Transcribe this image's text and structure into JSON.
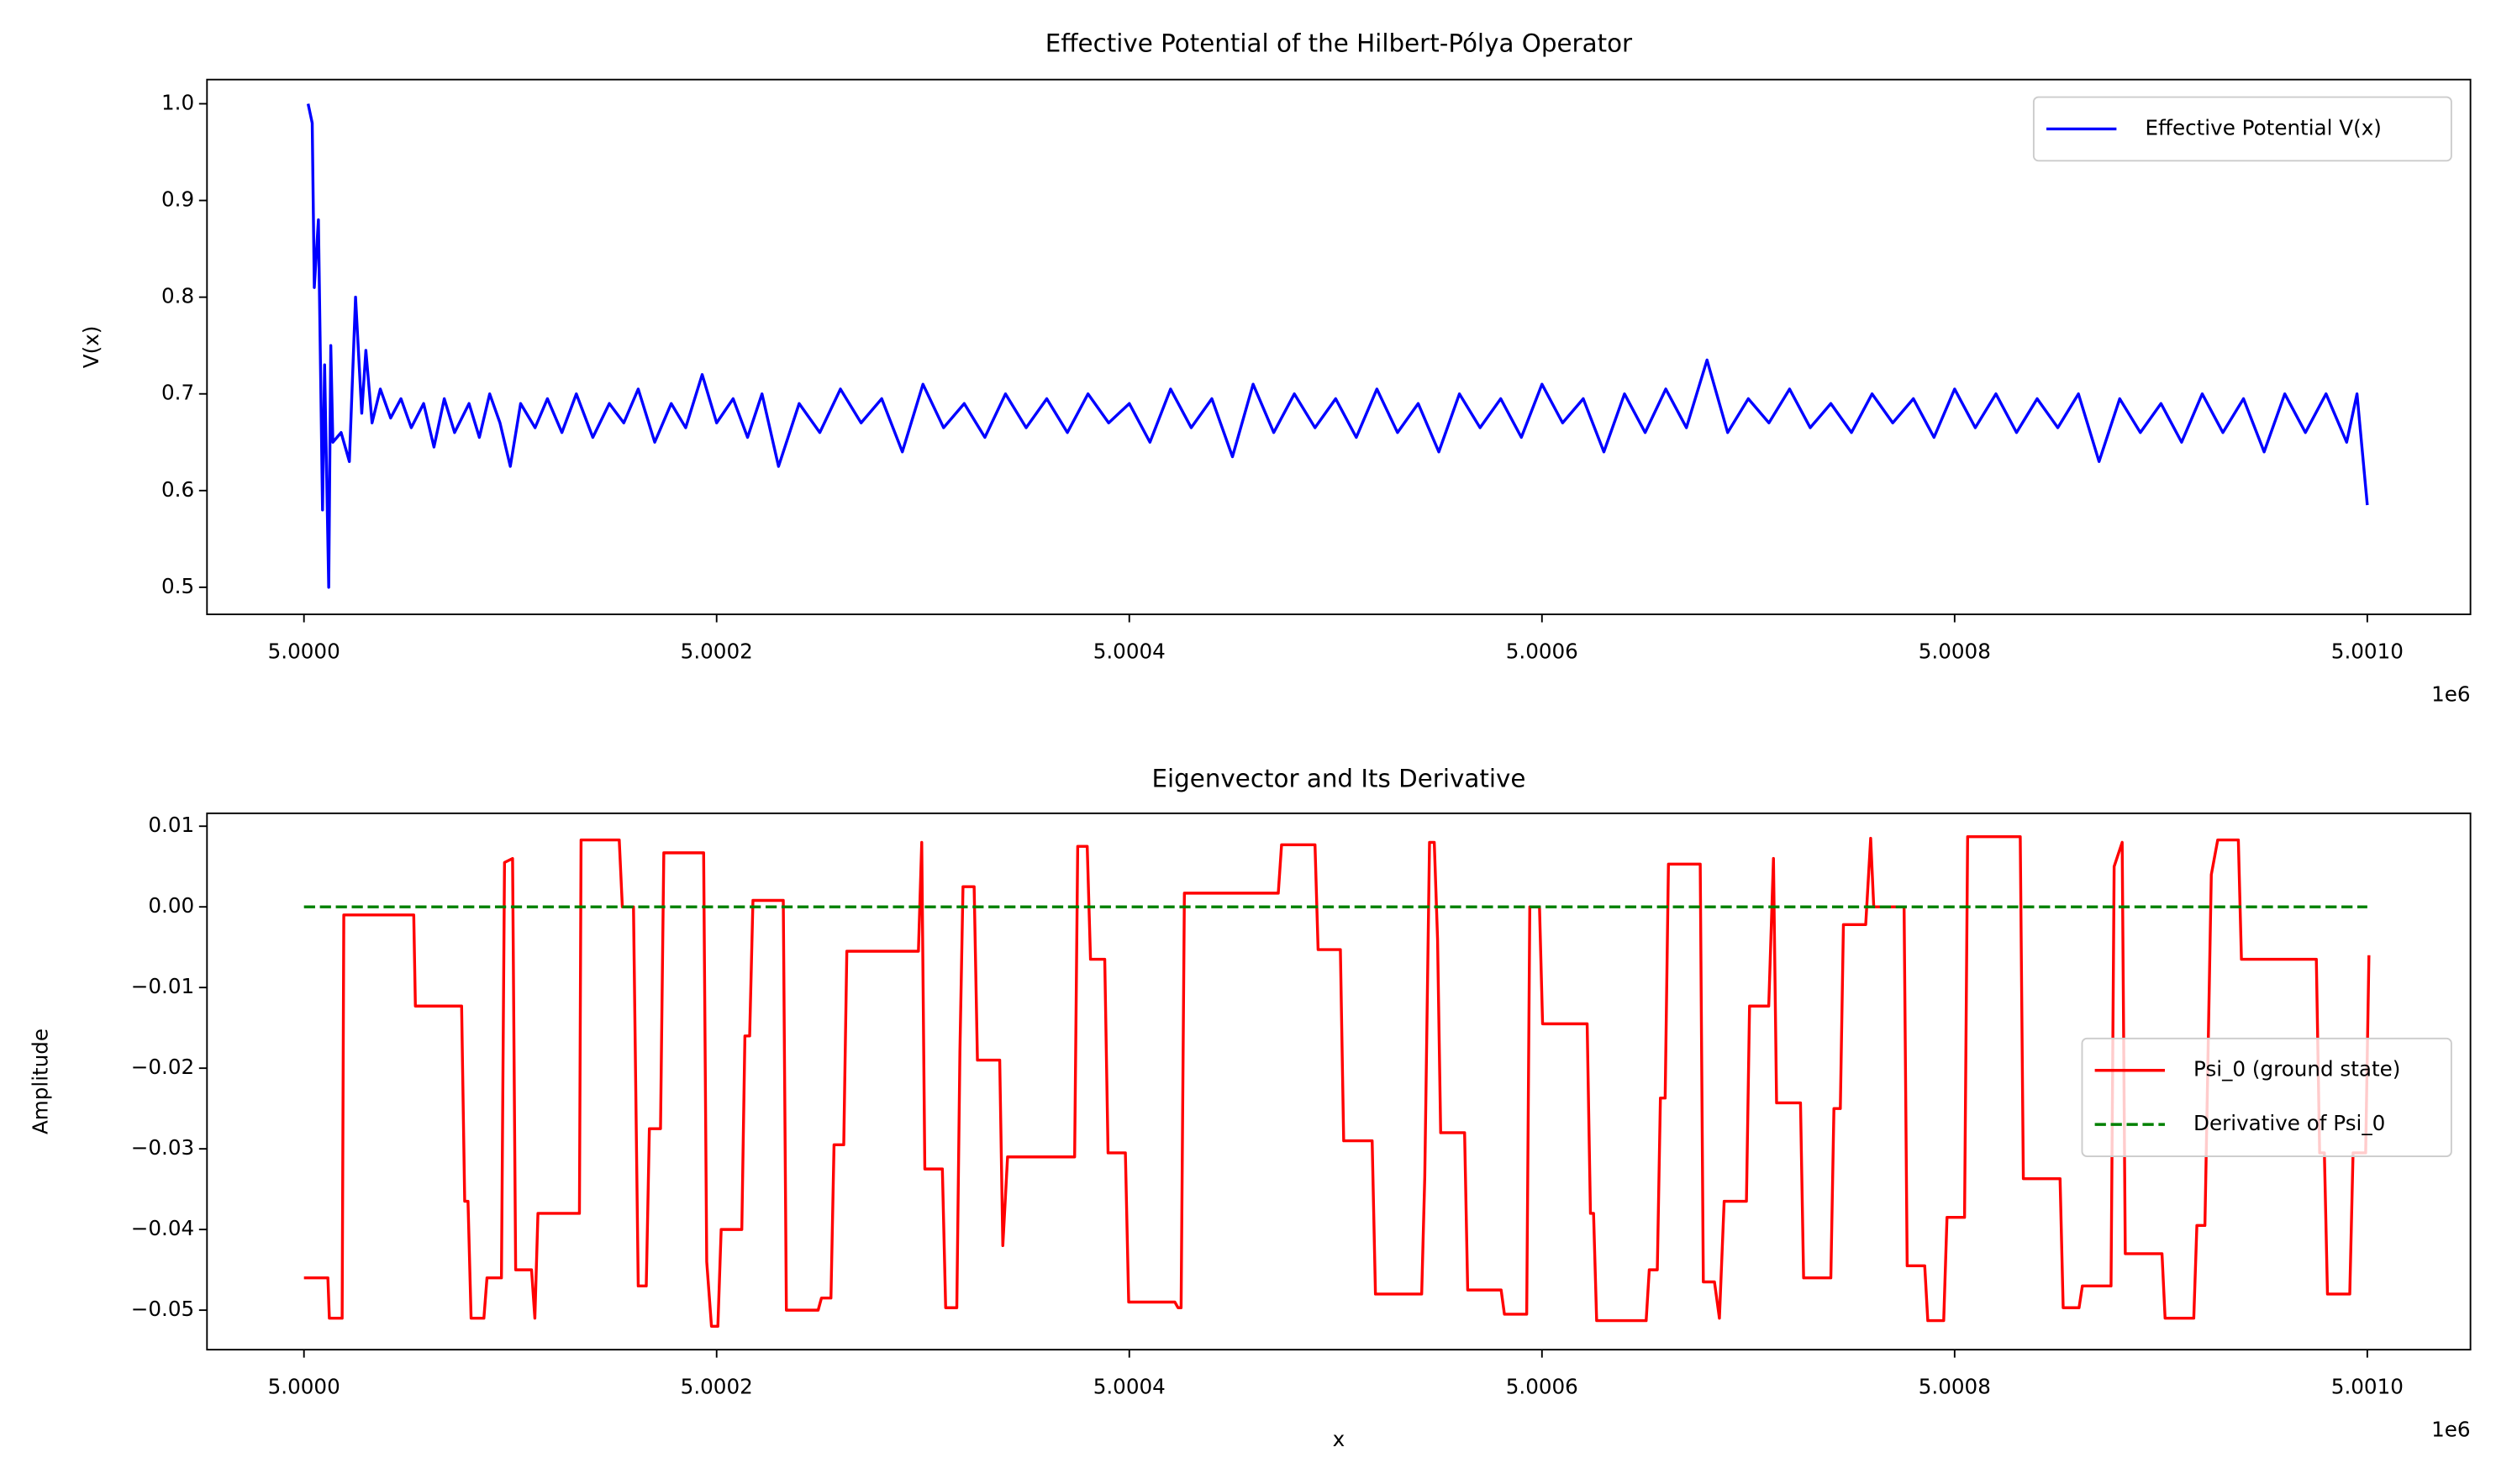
{
  "chart_data": [
    {
      "type": "line",
      "title": "Effective Potential of the Hilbert-Pólya Operator",
      "ylabel": "V(x)",
      "x_offset_label": "1e6",
      "xlim": [
        4.999953,
        5.00105
      ],
      "ylim": [
        0.472,
        1.025
      ],
      "xticks": [
        {
          "value": 5.0,
          "label": "5.0000"
        },
        {
          "value": 5.0002,
          "label": "5.0002"
        },
        {
          "value": 5.0004,
          "label": "5.0004"
        },
        {
          "value": 5.0006,
          "label": "5.0006"
        },
        {
          "value": 5.0008,
          "label": "5.0008"
        },
        {
          "value": 5.001,
          "label": "5.0010"
        }
      ],
      "yticks": [
        0.5,
        0.6,
        0.7,
        0.8,
        0.9,
        {
          "value": 1,
          "label": "1.0"
        }
      ],
      "legend": "upper right",
      "series": [
        {
          "name": "Effective Potential V(x)",
          "color": "#0000ff",
          "linestyle": "solid",
          "x": [
            5.000002,
            5.000004,
            5.000005,
            5.000007,
            5.000009,
            5.00001,
            5.000012,
            5.000013,
            5.000014,
            5.000018,
            5.000022,
            5.000025,
            5.000028,
            5.00003,
            5.000033,
            5.000037,
            5.000042,
            5.000047,
            5.000052,
            5.000058,
            5.000063,
            5.000068,
            5.000073,
            5.00008,
            5.000085,
            5.00009,
            5.000095,
            5.0001,
            5.000105,
            5.000112,
            5.000118,
            5.000125,
            5.000132,
            5.00014,
            5.000148,
            5.000155,
            5.000162,
            5.00017,
            5.000178,
            5.000185,
            5.000193,
            5.0002,
            5.000208,
            5.000215,
            5.000222,
            5.00023,
            5.00024,
            5.00025,
            5.00026,
            5.00027,
            5.00028,
            5.00029,
            5.0003,
            5.00031,
            5.00032,
            5.00033,
            5.00034,
            5.00035,
            5.00036,
            5.00037,
            5.00038,
            5.00039,
            5.0004,
            5.00041,
            5.00042,
            5.00043,
            5.00044,
            5.00045,
            5.00046,
            5.00047,
            5.00048,
            5.00049,
            5.0005,
            5.00051,
            5.00052,
            5.00053,
            5.00054,
            5.00055,
            5.00056,
            5.00057,
            5.00058,
            5.00059,
            5.0006,
            5.00061,
            5.00062,
            5.00063,
            5.00064,
            5.00065,
            5.00066,
            5.00067,
            5.00068,
            5.00069,
            5.0007,
            5.00071,
            5.00072,
            5.00073,
            5.00074,
            5.00075,
            5.00076,
            5.00077,
            5.00078,
            5.00079,
            5.0008,
            5.00081,
            5.00082,
            5.00083,
            5.00084,
            5.00085,
            5.00086,
            5.00087,
            5.00088,
            5.00089,
            5.0009,
            5.00091,
            5.00092,
            5.00093,
            5.00094,
            5.00095,
            5.00096,
            5.00097,
            5.00098,
            5.00099,
            5.000995,
            5.001
          ],
          "values": [
            1.0,
            0.98,
            0.81,
            0.88,
            0.58,
            0.73,
            0.5,
            0.75,
            0.65,
            0.66,
            0.63,
            0.8,
            0.68,
            0.745,
            0.67,
            0.705,
            0.675,
            0.695,
            0.665,
            0.69,
            0.645,
            0.695,
            0.66,
            0.69,
            0.655,
            0.7,
            0.67,
            0.625,
            0.69,
            0.665,
            0.695,
            0.66,
            0.7,
            0.655,
            0.69,
            0.67,
            0.705,
            0.65,
            0.69,
            0.665,
            0.72,
            0.67,
            0.695,
            0.655,
            0.7,
            0.625,
            0.69,
            0.66,
            0.705,
            0.67,
            0.695,
            0.64,
            0.71,
            0.665,
            0.69,
            0.655,
            0.7,
            0.665,
            0.695,
            0.66,
            0.7,
            0.67,
            0.69,
            0.65,
            0.705,
            0.665,
            0.695,
            0.635,
            0.71,
            0.66,
            0.7,
            0.665,
            0.695,
            0.655,
            0.705,
            0.66,
            0.69,
            0.64,
            0.7,
            0.665,
            0.695,
            0.655,
            0.71,
            0.67,
            0.695,
            0.64,
            0.7,
            0.66,
            0.705,
            0.665,
            0.735,
            0.66,
            0.695,
            0.67,
            0.705,
            0.665,
            0.69,
            0.66,
            0.7,
            0.67,
            0.695,
            0.655,
            0.705,
            0.665,
            0.7,
            0.66,
            0.695,
            0.665,
            0.7,
            0.63,
            0.695,
            0.66,
            0.69,
            0.65,
            0.7,
            0.66,
            0.695,
            0.64,
            0.7,
            0.66,
            0.7,
            0.65,
            0.7,
            0.585
          ]
        }
      ]
    },
    {
      "type": "line",
      "title": "Eigenvector and Its Derivative",
      "xlabel": "x",
      "ylabel": "Amplitude",
      "x_offset_label": "1e6",
      "xlim": [
        4.999953,
        5.00105
      ],
      "ylim": [
        -0.0549,
        0.0116
      ],
      "xticks": [
        {
          "value": 5.0,
          "label": "5.0000"
        },
        {
          "value": 5.0002,
          "label": "5.0002"
        },
        {
          "value": 5.0004,
          "label": "5.0004"
        },
        {
          "value": 5.0006,
          "label": "5.0006"
        },
        {
          "value": 5.0008,
          "label": "5.0008"
        },
        {
          "value": 5.001,
          "label": "5.0010"
        }
      ],
      "yticks": [
        {
          "value": -0.05,
          "label": "−0.05"
        },
        {
          "value": -0.04,
          "label": "−0.04"
        },
        {
          "value": -0.03,
          "label": "−0.03"
        },
        {
          "value": -0.02,
          "label": "−0.02"
        },
        {
          "value": -0.01,
          "label": "−0.01"
        },
        {
          "value": 0,
          "label": "0.00"
        },
        0.01
      ],
      "legend": "center right",
      "series": [
        {
          "name": "Psi_0 (ground state)",
          "color": "#ff0000",
          "linestyle": "solid",
          "x": [
            5.0,
            5.0000116,
            5.0000123,
            5.0000185,
            5.0000193,
            5.0000532,
            5.000054,
            5.0000764,
            5.0000779,
            5.0000795,
            5.000081,
            5.0000872,
            5.0000887,
            5.0000957,
            5.0000972,
            5.0001011,
            5.0001026,
            5.0001103,
            5.0001119,
            5.0001134,
            5.0001335,
            5.0001343,
            5.0001528,
            5.0001543,
            5.0001597,
            5.000162,
            5.0001659,
            5.0001674,
            5.0001728,
            5.0001744,
            5.0001937,
            5.0001952,
            5.0001975,
            5.0002006,
            5.0002022,
            5.0002122,
            5.0002137,
            5.000216,
            5.0002176,
            5.0002323,
            5.0002338,
            5.0002492,
            5.0002508,
            5.0002554,
            5.0002569,
            5.0002616,
            5.0002631,
            5.0002978,
            5.0002994,
            5.0003009,
            5.0003094,
            5.000311,
            5.0003164,
            5.0003179,
            5.0003194,
            5.0003248,
            5.0003264,
            5.0003372,
            5.0003387,
            5.000341,
            5.0003735,
            5.000375,
            5.0003796,
            5.0003812,
            5.0003881,
            5.0003897,
            5.0003981,
            5.0003997,
            5.0004221,
            5.0004236,
            5.0004251,
            5.0004267,
            5.0004722,
            5.0004738,
            5.00049,
            5.0004915,
            5.0005023,
            5.0005039,
            5.0005177,
            5.0005193,
            5.0005417,
            5.0005432,
            5.0005455,
            5.0005478,
            5.0005494,
            5.0005509,
            5.0005625,
            5.000564,
            5.0005802,
            5.0005818,
            5.0005926,
            5.0005941,
            5.0005988,
            5.0006003,
            5.0006219,
            5.0006235,
            5.000625,
            5.0006265,
            5.0006505,
            5.000652,
            5.0006559,
            5.0006574,
            5.0006597,
            5.0006613,
            5.0006767,
            5.0006782,
            5.0006836,
            5.000686,
            5.0006883,
            5.0006991,
            5.0007006,
            5.0007099,
            5.0007122,
            5.0007137,
            5.0007253,
            5.0007268,
            5.00074,
            5.0007415,
            5.0007446,
            5.0007461,
            5.0007569,
            5.0007593,
            5.0007608,
            5.0007755,
            5.000777,
            5.0007855,
            5.000787,
            5.0007947,
            5.0007963,
            5.0008048,
            5.0008063,
            5.0008318,
            5.0008333,
            5.0008511,
            5.0008526,
            5.0008603,
            5.0008619,
            5.0008758,
            5.0008773,
            5.0008812,
            5.0008827,
            5.0009005,
            5.000902,
            5.0009159,
            5.0009174,
            5.0009213,
            5.0009244,
            5.0009275,
            5.0009375,
            5.000939,
            5.0009753,
            5.0009769,
            5.0009792,
            5.0009807,
            5.0009915,
            5.0009931,
            5.0009992,
            5.0010008
          ],
          "values": [
            -0.046,
            -0.046,
            -0.051,
            -0.051,
            -0.001,
            -0.001,
            -0.0123,
            -0.0123,
            -0.0365,
            -0.0365,
            -0.051,
            -0.051,
            -0.046,
            -0.046,
            0.0055,
            0.006,
            -0.045,
            -0.045,
            -0.051,
            -0.038,
            -0.038,
            0.0083,
            0.0083,
            0,
            0,
            -0.047,
            -0.047,
            -0.0275,
            -0.0275,
            0.0067,
            0.0067,
            -0.044,
            -0.052,
            -0.052,
            -0.04,
            -0.04,
            -0.016,
            -0.016,
            0.0008,
            0.0008,
            -0.05,
            -0.05,
            -0.0485,
            -0.0485,
            -0.0295,
            -0.0295,
            -0.0055,
            -0.0055,
            0.008,
            -0.0325,
            -0.0325,
            -0.0497,
            -0.0497,
            -0.018,
            0.0025,
            0.0025,
            -0.019,
            -0.019,
            -0.042,
            -0.031,
            -0.031,
            0.0075,
            0.0075,
            -0.0065,
            -0.0065,
            -0.0305,
            -0.0305,
            -0.049,
            -0.049,
            -0.0497,
            -0.0497,
            0.0017,
            0.0017,
            0.0077,
            0.0077,
            -0.0053,
            -0.0053,
            -0.029,
            -0.029,
            -0.048,
            -0.048,
            -0.0335,
            0.008,
            0.008,
            -0.004,
            -0.028,
            -0.028,
            -0.0475,
            -0.0475,
            -0.0505,
            -0.0505,
            0,
            0,
            -0.0145,
            -0.0145,
            -0.038,
            -0.038,
            -0.0513,
            -0.0513,
            -0.045,
            -0.045,
            -0.0237,
            -0.0237,
            0.0053,
            0.0053,
            -0.0465,
            -0.0465,
            -0.051,
            -0.0365,
            -0.0365,
            -0.0123,
            -0.0123,
            0.006,
            -0.0243,
            -0.0243,
            -0.046,
            -0.046,
            -0.025,
            -0.025,
            -0.0022,
            -0.0022,
            0.0085,
            0,
            0,
            -0.0445,
            -0.0445,
            -0.0513,
            -0.0513,
            -0.0385,
            -0.0385,
            0.0087,
            0.0087,
            -0.0337,
            -0.0337,
            -0.0497,
            -0.0497,
            -0.047,
            -0.047,
            0.005,
            0.008,
            -0.043,
            -0.043,
            -0.051,
            -0.051,
            -0.0395,
            -0.0395,
            0.004,
            0.0083,
            0.0083,
            -0.0065,
            -0.0065,
            -0.0305,
            -0.0305,
            -0.048,
            -0.048,
            -0.0305,
            -0.0305,
            -0.006
          ]
        },
        {
          "name": "Derivative of Psi_0",
          "color": "#008000",
          "linestyle": "dashed",
          "x": [
            5.0,
            5.001
          ],
          "values": [
            0,
            0
          ]
        }
      ]
    }
  ]
}
